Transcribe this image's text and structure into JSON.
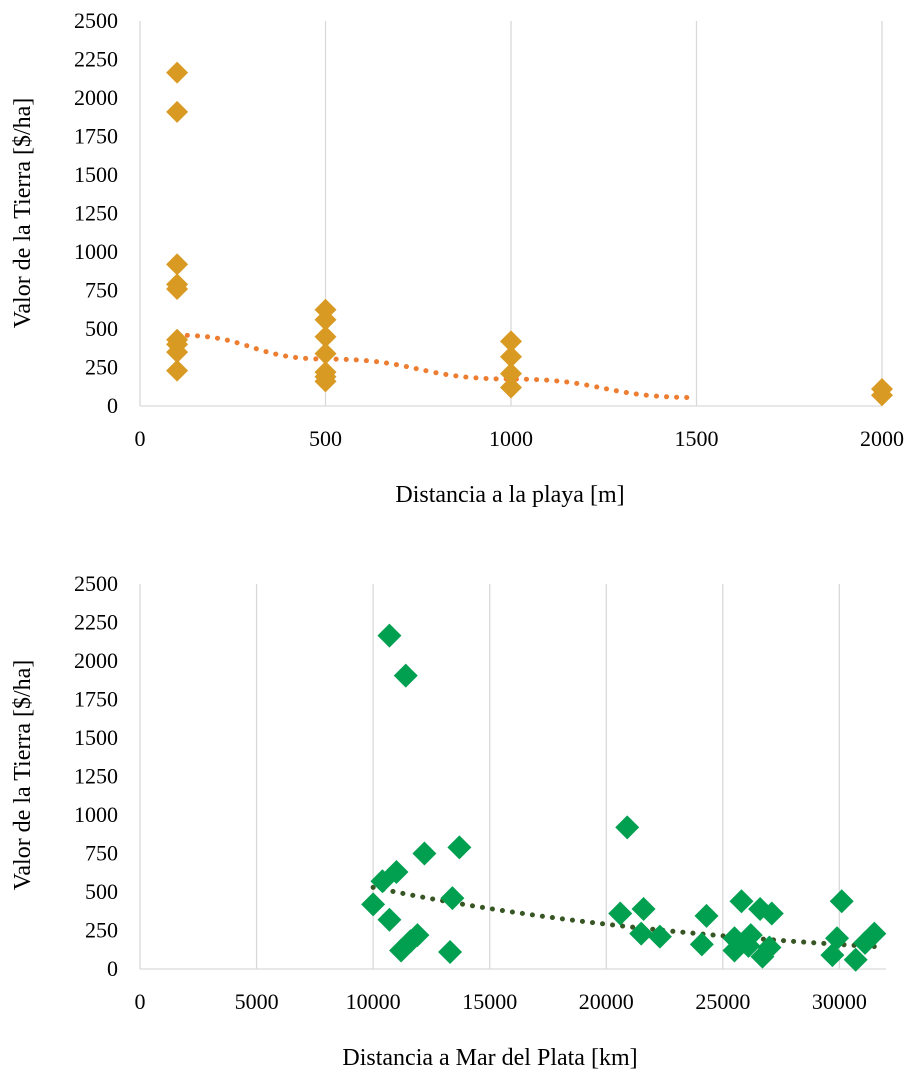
{
  "chart_data": [
    {
      "type": "scatter",
      "xlabel": "Distancia a la playa [m]",
      "ylabel": "Valor de la Tierra [$/ha]",
      "xlim": [
        0,
        2000
      ],
      "ylim": [
        0,
        2500
      ],
      "x_scale": "categorical",
      "x_ticks": [
        "0",
        "500",
        "1000",
        "1500",
        "2000"
      ],
      "y_ticks": [
        "0",
        "250",
        "500",
        "750",
        "1000",
        "1250",
        "1500",
        "1750",
        "2000",
        "2250",
        "2500"
      ],
      "grid": "vertical",
      "marker": "diamond",
      "marker_color": "#D99A24",
      "trendline": {
        "style": "dotted",
        "color": "#ED7D31",
        "values": [
          460,
          305,
          175,
          55
        ]
      },
      "points": [
        {
          "x": 100,
          "y": 2165
        },
        {
          "x": 100,
          "y": 1910
        },
        {
          "x": 100,
          "y": 920
        },
        {
          "x": 100,
          "y": 790
        },
        {
          "x": 100,
          "y": 760
        },
        {
          "x": 100,
          "y": 430
        },
        {
          "x": 100,
          "y": 400
        },
        {
          "x": 100,
          "y": 350
        },
        {
          "x": 100,
          "y": 230
        },
        {
          "x": 500,
          "y": 625
        },
        {
          "x": 500,
          "y": 560
        },
        {
          "x": 500,
          "y": 450
        },
        {
          "x": 500,
          "y": 340
        },
        {
          "x": 500,
          "y": 220
        },
        {
          "x": 500,
          "y": 190
        },
        {
          "x": 500,
          "y": 160
        },
        {
          "x": 1000,
          "y": 420
        },
        {
          "x": 1000,
          "y": 320
        },
        {
          "x": 1000,
          "y": 210
        },
        {
          "x": 1000,
          "y": 120
        },
        {
          "x": 2000,
          "y": 110
        },
        {
          "x": 2000,
          "y": 70
        }
      ]
    },
    {
      "type": "scatter",
      "xlabel": "Distancia a Mar del Plata [km]",
      "ylabel": "Valor de la Tierra [$/ha]",
      "xlim": [
        0,
        32000
      ],
      "ylim": [
        0,
        2500
      ],
      "x_ticks": [
        "0",
        "5000",
        "10000",
        "15000",
        "20000",
        "25000",
        "30000"
      ],
      "y_ticks": [
        "0",
        "250",
        "500",
        "750",
        "1000",
        "1250",
        "1500",
        "1750",
        "2000",
        "2250",
        "2500"
      ],
      "grid": "vertical",
      "marker": "diamond",
      "marker_color": "#00A050",
      "trendline": {
        "style": "dotted",
        "color": "#375623",
        "x_from": 10000,
        "x_to": 31600,
        "y_from": 530,
        "y_to": 145
      },
      "points": [
        {
          "x": 10700,
          "y": 2165
        },
        {
          "x": 11400,
          "y": 1905
        },
        {
          "x": 20900,
          "y": 920
        },
        {
          "x": 13700,
          "y": 790
        },
        {
          "x": 12200,
          "y": 750
        },
        {
          "x": 11000,
          "y": 630
        },
        {
          "x": 10400,
          "y": 570
        },
        {
          "x": 13400,
          "y": 460
        },
        {
          "x": 10000,
          "y": 420
        },
        {
          "x": 10700,
          "y": 320
        },
        {
          "x": 11900,
          "y": 220
        },
        {
          "x": 11600,
          "y": 180
        },
        {
          "x": 11200,
          "y": 120
        },
        {
          "x": 13300,
          "y": 110
        },
        {
          "x": 20600,
          "y": 360
        },
        {
          "x": 21600,
          "y": 390
        },
        {
          "x": 21500,
          "y": 230
        },
        {
          "x": 22300,
          "y": 210
        },
        {
          "x": 24300,
          "y": 345
        },
        {
          "x": 24100,
          "y": 160
        },
        {
          "x": 25800,
          "y": 440
        },
        {
          "x": 25500,
          "y": 200
        },
        {
          "x": 25500,
          "y": 120
        },
        {
          "x": 26200,
          "y": 220
        },
        {
          "x": 26100,
          "y": 150
        },
        {
          "x": 26600,
          "y": 390
        },
        {
          "x": 26700,
          "y": 80
        },
        {
          "x": 27000,
          "y": 140
        },
        {
          "x": 27100,
          "y": 360
        },
        {
          "x": 30100,
          "y": 440
        },
        {
          "x": 29900,
          "y": 200
        },
        {
          "x": 29700,
          "y": 90
        },
        {
          "x": 30700,
          "y": 60
        },
        {
          "x": 31100,
          "y": 170
        },
        {
          "x": 31500,
          "y": 230
        }
      ]
    }
  ]
}
